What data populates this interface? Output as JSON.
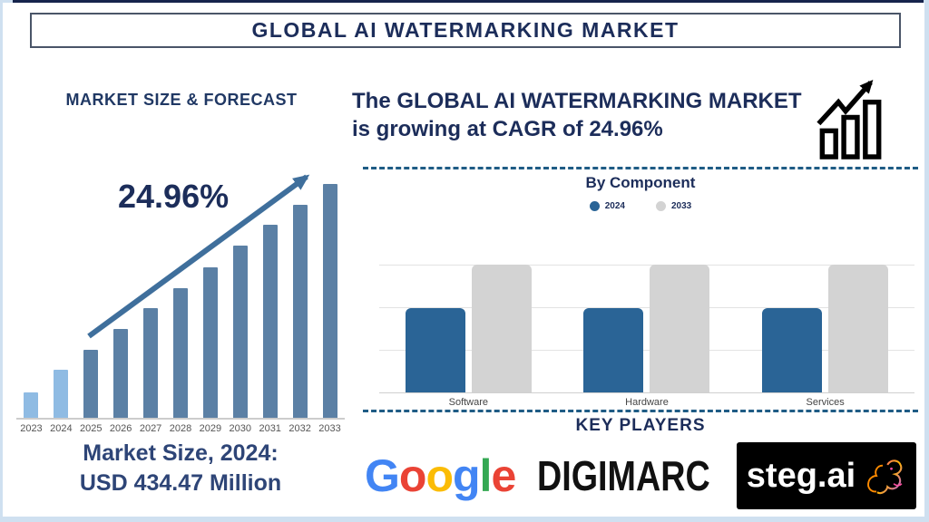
{
  "window": {
    "title": "GLOBAL AI WATERMARKING MARKET"
  },
  "left_panel": {
    "heading": "MARKET SIZE & FORECAST",
    "cagr_label": "24.96%",
    "caption": {
      "line1": "Market Size, 2024:",
      "line2": "USD 434.47 Million"
    }
  },
  "right_panel": {
    "headline": {
      "line1": "The GLOBAL AI WATERMARKING MARKET",
      "line2": "is growing at CAGR of 24.96%"
    },
    "component_section": {
      "title": "By Component",
      "legend": [
        {
          "label": "2024",
          "color": "#2a6496"
        },
        {
          "label": "2033",
          "color": "#d3d3d3"
        }
      ]
    },
    "key_players": {
      "heading": "KEY PLAYERS",
      "google": {
        "name": "Google",
        "letters": [
          {
            "ch": "G",
            "color": "#4285F4"
          },
          {
            "ch": "o",
            "color": "#EA4335"
          },
          {
            "ch": "o",
            "color": "#FBBC05"
          },
          {
            "ch": "g",
            "color": "#4285F4"
          },
          {
            "ch": "l",
            "color": "#34A853"
          },
          {
            "ch": "e",
            "color": "#EA4335"
          }
        ]
      },
      "digimarc": {
        "name": "DIGIMARC"
      },
      "stegai": {
        "name": "steg.ai"
      }
    }
  },
  "chart_data": [
    {
      "type": "bar",
      "title": "MARKET SIZE & FORECAST",
      "categories": [
        "2023",
        "2024",
        "2025",
        "2026",
        "2027",
        "2028",
        "2029",
        "2030",
        "2031",
        "2032",
        "2033"
      ],
      "relative_heights_pct": [
        11,
        20.5,
        29,
        38,
        47,
        55.5,
        64.5,
        73.5,
        82.5,
        91,
        100
      ],
      "highlight_years": [
        "2023",
        "2024"
      ],
      "annotations": {
        "cagr_pct": 24.96,
        "market_size_2024_usd_million": 434.47
      },
      "xlabel": "",
      "ylabel": "",
      "value_labels_shown": false,
      "grid": "off",
      "trend_arrow": true
    },
    {
      "type": "bar",
      "title": "By Component",
      "categories": [
        "Software",
        "Hardware",
        "Services"
      ],
      "series": [
        {
          "name": "2024",
          "color": "#2a6496",
          "relative_heights_pct": [
            66,
            66,
            66
          ]
        },
        {
          "name": "2033",
          "color": "#d3d3d3",
          "relative_heights_pct": [
            100,
            100,
            100
          ]
        }
      ],
      "legend_position": "top",
      "grid": "horizontal",
      "value_labels_shown": false
    }
  ],
  "colors": {
    "navy_text": "#1c2d5a",
    "caption_text": "#2e4577",
    "bar_light_blue": "#8fbbe3",
    "bar_steel_blue": "#5b80a5",
    "trend_arrow": "#3f6f9c",
    "component_2024": "#2a6496",
    "component_2033": "#d3d3d3",
    "dashed_divider": "#1f5c85",
    "frame": "#cfe0f0",
    "axis_line": "#cccccc",
    "year_label": "#555555"
  }
}
